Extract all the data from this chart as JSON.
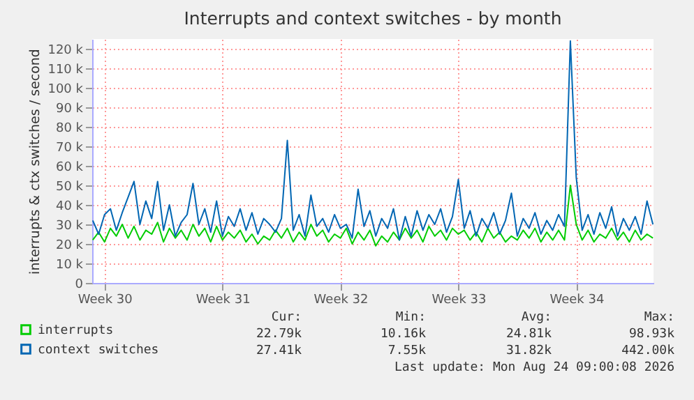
{
  "chart_data": {
    "type": "line",
    "title": "Interrupts and context switches - by month",
    "ylabel": "interrupts & ctx switches / second",
    "categories": [
      null,
      null,
      "Week 30",
      null,
      null,
      null,
      null,
      null,
      null,
      null,
      null,
      null,
      null,
      null,
      null,
      null,
      null,
      null,
      null,
      null,
      null,
      null,
      "Week 31",
      null,
      null,
      null,
      null,
      null,
      null,
      null,
      null,
      null,
      null,
      null,
      null,
      null,
      null,
      null,
      null,
      null,
      null,
      null,
      "Week 32",
      null,
      null,
      null,
      null,
      null,
      null,
      null,
      null,
      null,
      null,
      null,
      null,
      null,
      null,
      null,
      null,
      null,
      null,
      null,
      "Week 33",
      null,
      null,
      null,
      null,
      null,
      null,
      null,
      null,
      null,
      null,
      null,
      null,
      null,
      null,
      null,
      null,
      null,
      null,
      null,
      "Week 34",
      null,
      null,
      null,
      null,
      null,
      null,
      null,
      null,
      null,
      null,
      null,
      null,
      null
    ],
    "series": [
      {
        "name": "interrupts",
        "color": "#00cc00",
        "values": [
          22000,
          26000,
          21000,
          28000,
          24000,
          30000,
          23000,
          29000,
          22000,
          27000,
          25000,
          31000,
          21000,
          28000,
          23000,
          27000,
          22000,
          30000,
          24000,
          28000,
          21000,
          29000,
          22000,
          26000,
          23000,
          27000,
          21000,
          25000,
          20000,
          24000,
          22000,
          27000,
          23000,
          28000,
          21000,
          26000,
          22000,
          30000,
          24000,
          27000,
          21000,
          25000,
          23000,
          28000,
          20000,
          26000,
          22000,
          27000,
          19000,
          24000,
          21000,
          26000,
          22000,
          28000,
          23000,
          27000,
          21000,
          29000,
          24000,
          27000,
          22000,
          28000,
          25000,
          27000,
          22000,
          26000,
          21000,
          28000,
          23000,
          26000,
          21000,
          24000,
          22000,
          27000,
          23000,
          28000,
          21000,
          26000,
          22000,
          27000,
          22000,
          50000,
          30000,
          22000,
          27000,
          21000,
          25000,
          23000,
          28000,
          22000,
          26000,
          21000,
          27000,
          22000,
          25000,
          23000
        ]
      },
      {
        "name": "context switches",
        "color": "#0066b3",
        "values": [
          32000,
          25000,
          35000,
          38000,
          27000,
          36000,
          44000,
          52000,
          30000,
          42000,
          33000,
          52000,
          27000,
          40000,
          24000,
          31000,
          35000,
          51000,
          30000,
          38000,
          26000,
          42000,
          24000,
          34000,
          29000,
          38000,
          27000,
          36000,
          25000,
          33000,
          30000,
          26000,
          33000,
          73000,
          27000,
          35000,
          24000,
          45000,
          29000,
          33000,
          26000,
          35000,
          28000,
          30000,
          23000,
          48000,
          29000,
          37000,
          24000,
          33000,
          28000,
          38000,
          22000,
          34000,
          24000,
          37000,
          27000,
          35000,
          30000,
          38000,
          26000,
          34000,
          53000,
          28000,
          37000,
          24000,
          33000,
          28000,
          36000,
          25000,
          32000,
          46000,
          24000,
          33000,
          28000,
          36000,
          25000,
          32000,
          27000,
          35000,
          29000,
          124000,
          54000,
          27000,
          35000,
          25000,
          36000,
          28000,
          39000,
          24000,
          33000,
          27000,
          34000,
          25000,
          42000,
          30000
        ]
      }
    ],
    "ylim": [
      0,
      125000
    ],
    "yticks": [
      0,
      {
        "value": 10000,
        "label": "10 k"
      },
      {
        "value": 20000,
        "label": "20 k"
      },
      {
        "value": 30000,
        "label": "30 k"
      },
      {
        "value": 40000,
        "label": "40 k"
      },
      {
        "value": 50000,
        "label": "50 k"
      },
      {
        "value": 60000,
        "label": "60 k"
      },
      {
        "value": 70000,
        "label": "70 k"
      },
      {
        "value": 80000,
        "label": "80 k"
      },
      {
        "value": 90000,
        "label": "90 k"
      },
      {
        "value": 100000,
        "label": "100 k"
      },
      {
        "value": 110000,
        "label": "110 k"
      },
      {
        "value": 120000,
        "label": "120 k"
      }
    ],
    "grid": true,
    "legend": "bottom",
    "annotations": [
      "Cur:",
      "Min:",
      "Avg:",
      "Max:",
      "22.79k",
      "10.16k",
      "24.81k",
      "98.93k",
      "27.41k",
      "7.55k",
      "31.82k",
      "442.00k",
      "Last update: Mon Aug 24 09:00:08 2026"
    ]
  }
}
